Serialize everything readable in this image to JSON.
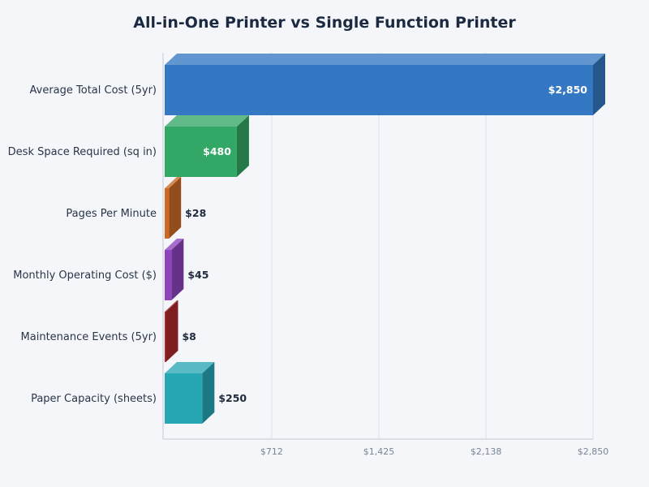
{
  "chart_data": {
    "type": "bar",
    "orientation": "horizontal",
    "style": "3d",
    "title": "All-in-One Printer vs Single Function Printer",
    "xlabel": "",
    "ylabel": "",
    "xlim": [
      0,
      2850
    ],
    "x_ticks": [
      "$712",
      "$1,425",
      "$2,138",
      "$2,850"
    ],
    "x_tick_values": [
      712,
      1425,
      2138,
      2850
    ],
    "grid": true,
    "categories": [
      "Average Total Cost (5yr)",
      "Desk Space Required (sq in)",
      "Pages Per Minute",
      "Monthly Operating Cost ($)",
      "Maintenance Events (5yr)",
      "Paper Capacity (sheets)"
    ],
    "values": [
      2850,
      480,
      28,
      45,
      8,
      250
    ],
    "value_labels": [
      "$2,850",
      "$480",
      "$28",
      "$45",
      "$8",
      "$250"
    ],
    "colors": [
      "#3478c3",
      "#33a866",
      "#cc6a24",
      "#8e44bd",
      "#b02a2e",
      "#27a6b4"
    ]
  }
}
